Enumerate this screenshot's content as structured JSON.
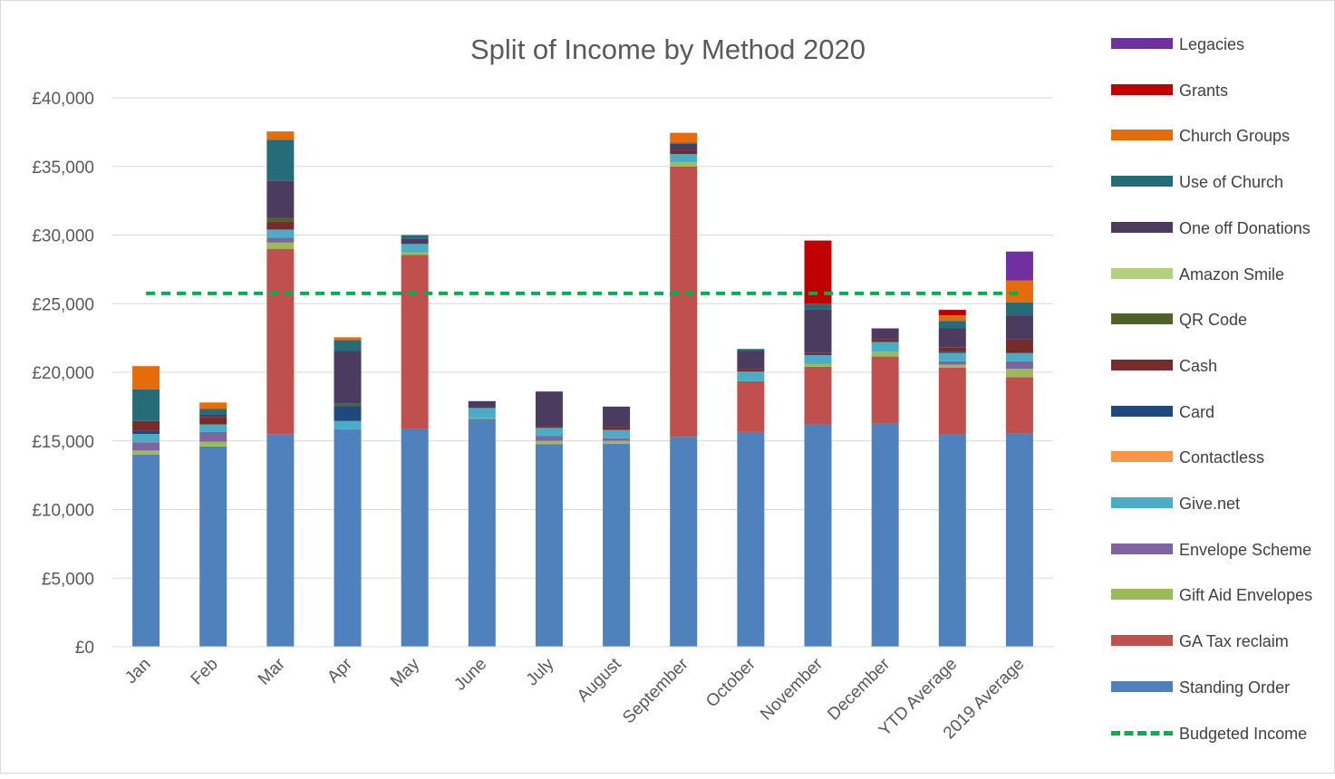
{
  "chart_data": {
    "type": "bar",
    "stacked": true,
    "title": "Split of Income by Method 2020",
    "xlabel": "",
    "ylabel": "",
    "ylim": [
      0,
      40000
    ],
    "yticks": [
      "£0",
      "£5,000",
      "£10,000",
      "£15,000",
      "£20,000",
      "£25,000",
      "£30,000",
      "£35,000",
      "£40,000"
    ],
    "ytick_values": [
      0,
      5000,
      10000,
      15000,
      20000,
      25000,
      30000,
      35000,
      40000
    ],
    "grid": "horizontal",
    "legend_position": "right",
    "categories": [
      "Jan",
      "Feb",
      "Mar",
      "Apr",
      "May",
      "June",
      "July",
      "August",
      "September",
      "October",
      "November",
      "December",
      "YTD Average",
      "2019 Average"
    ],
    "series": [
      {
        "name": "Standing Order",
        "color": "#4f81bd",
        "values": [
          14000,
          14600,
          15500,
          15850,
          15850,
          16600,
          14750,
          14800,
          15300,
          15650,
          16200,
          16300,
          15450,
          15550
        ]
      },
      {
        "name": "GA Tax reclaim",
        "color": "#c0504d",
        "values": [
          0,
          0,
          13500,
          0,
          12700,
          0,
          0,
          0,
          19700,
          3700,
          4200,
          4850,
          4900,
          4100
        ]
      },
      {
        "name": "Gift Aid Envelopes",
        "color": "#9bbb59",
        "values": [
          300,
          350,
          450,
          0,
          200,
          100,
          250,
          200,
          300,
          0,
          200,
          350,
          200,
          600
        ]
      },
      {
        "name": "Envelope Scheme",
        "color": "#8064a2",
        "values": [
          600,
          700,
          350,
          0,
          0,
          0,
          350,
          200,
          0,
          0,
          0,
          0,
          250,
          550
        ]
      },
      {
        "name": "Give.net",
        "color": "#4bacc6",
        "values": [
          600,
          550,
          600,
          600,
          600,
          700,
          600,
          600,
          600,
          700,
          650,
          700,
          600,
          600
        ]
      },
      {
        "name": "Contactless",
        "color": "#f79646",
        "values": [
          0,
          0,
          0,
          0,
          0,
          0,
          0,
          0,
          0,
          0,
          0,
          0,
          0,
          0
        ]
      },
      {
        "name": "Card",
        "color": "#1f497d",
        "values": [
          250,
          0,
          0,
          1100,
          0,
          0,
          0,
          0,
          0,
          0,
          0,
          0,
          100,
          0
        ]
      },
      {
        "name": "Cash",
        "color": "#772c2a",
        "values": [
          700,
          550,
          600,
          0,
          0,
          0,
          150,
          200,
          300,
          200,
          150,
          200,
          300,
          1000
        ]
      },
      {
        "name": "QR Code",
        "color": "#4f6228",
        "values": [
          0,
          0,
          250,
          200,
          0,
          0,
          0,
          0,
          0,
          0,
          0,
          0,
          0,
          0
        ]
      },
      {
        "name": "Amazon Smile",
        "color": "#b3d17d",
        "values": [
          0,
          0,
          0,
          0,
          0,
          0,
          0,
          0,
          0,
          0,
          0,
          0,
          0,
          0
        ]
      },
      {
        "name": "One off Donations",
        "color": "#4b3b5e",
        "values": [
          0,
          150,
          2700,
          3800,
          400,
          500,
          2500,
          1500,
          450,
          1300,
          3200,
          800,
          1400,
          1750
        ]
      },
      {
        "name": "Use of Church",
        "color": "#256b78",
        "values": [
          2300,
          450,
          3000,
          800,
          250,
          0,
          0,
          0,
          100,
          150,
          400,
          0,
          550,
          950
        ]
      },
      {
        "name": "Church Groups",
        "color": "#e46c0a",
        "values": [
          1700,
          450,
          600,
          200,
          0,
          0,
          0,
          0,
          700,
          0,
          0,
          0,
          400,
          1600
        ]
      },
      {
        "name": "Grants",
        "color": "#c00000",
        "values": [
          0,
          0,
          0,
          0,
          0,
          0,
          0,
          0,
          0,
          0,
          4600,
          0,
          400,
          0
        ]
      },
      {
        "name": "Legacies",
        "color": "#7030a0",
        "values": [
          0,
          0,
          0,
          0,
          0,
          0,
          0,
          0,
          0,
          0,
          0,
          0,
          0,
          2100
        ]
      }
    ],
    "lines": [
      {
        "name": "Budgeted Income",
        "color": "#00b050",
        "style": "dashed",
        "value": 25750
      }
    ],
    "legend": [
      {
        "label": "Legacies",
        "color": "#7030a0",
        "kind": "bar"
      },
      {
        "label": "Grants",
        "color": "#c00000",
        "kind": "bar"
      },
      {
        "label": "Church Groups",
        "color": "#e46c0a",
        "kind": "bar"
      },
      {
        "label": "Use of Church",
        "color": "#256b78",
        "kind": "bar"
      },
      {
        "label": "One off Donations",
        "color": "#4b3b5e",
        "kind": "bar"
      },
      {
        "label": "Amazon Smile",
        "color": "#b3d17d",
        "kind": "bar"
      },
      {
        "label": "QR Code",
        "color": "#4f6228",
        "kind": "bar"
      },
      {
        "label": "Cash",
        "color": "#772c2a",
        "kind": "bar"
      },
      {
        "label": "Card",
        "color": "#1f497d",
        "kind": "bar"
      },
      {
        "label": "Contactless",
        "color": "#f79646",
        "kind": "bar"
      },
      {
        "label": "Give.net",
        "color": "#4bacc6",
        "kind": "bar"
      },
      {
        "label": "Envelope Scheme",
        "color": "#8064a2",
        "kind": "bar"
      },
      {
        "label": "Gift Aid Envelopes",
        "color": "#9bbb59",
        "kind": "bar"
      },
      {
        "label": "GA Tax reclaim",
        "color": "#c0504d",
        "kind": "bar"
      },
      {
        "label": "Standing Order",
        "color": "#4f81bd",
        "kind": "bar"
      },
      {
        "label": "Budgeted Income",
        "color": "#00b050",
        "kind": "line"
      }
    ]
  }
}
